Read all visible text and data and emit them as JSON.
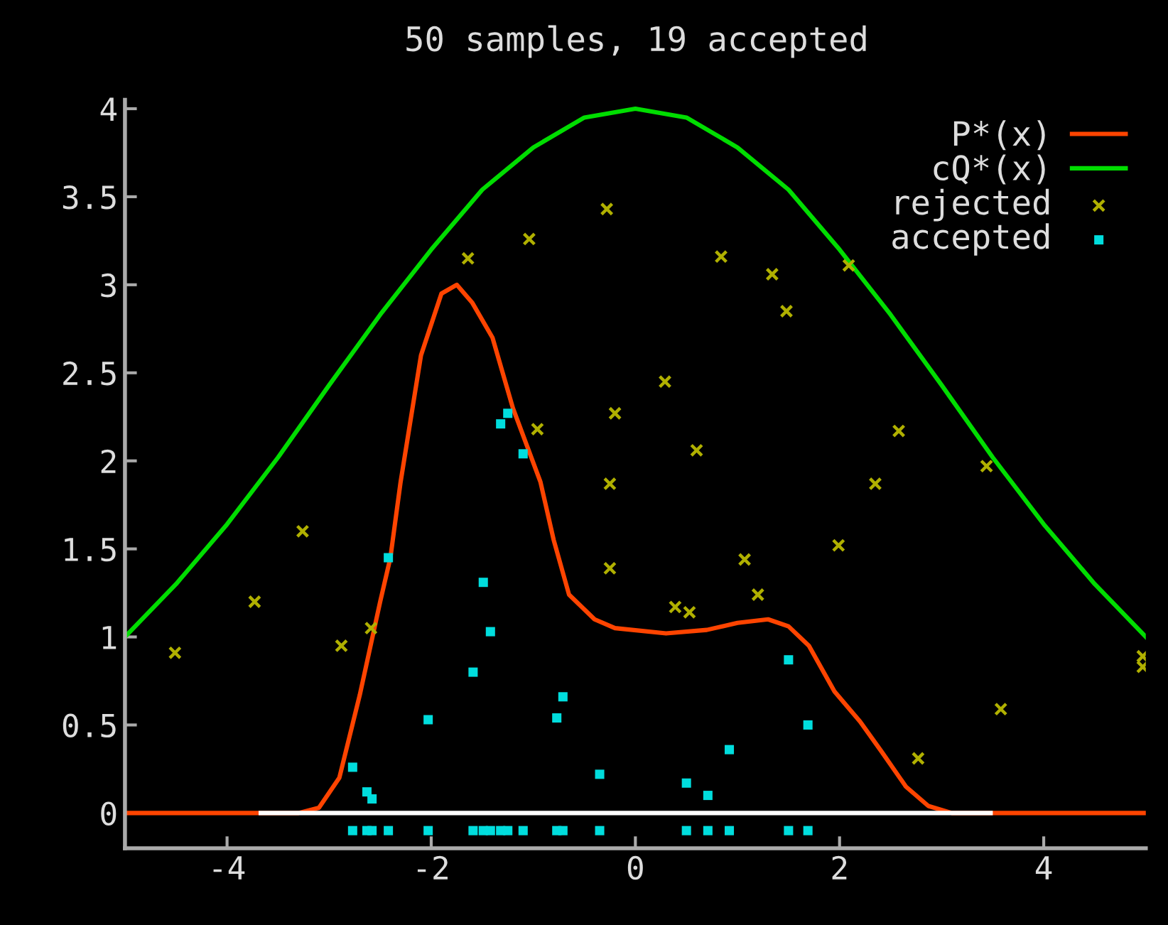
{
  "chart_data": {
    "type": "line",
    "title": "50 samples, 19 accepted",
    "xlim": [
      -5,
      5
    ],
    "xticks": [
      -4,
      -2,
      0,
      2,
      4
    ],
    "ylim": [
      -0.2,
      4.05
    ],
    "yticks": [
      0,
      0.5,
      1,
      1.5,
      2,
      2.5,
      3,
      3.5,
      4
    ],
    "grid": false,
    "legend": "top right",
    "series": [
      {
        "name": "P*(x)",
        "color": "#ff4400",
        "marker": "none",
        "x": [
          -5,
          -3.3,
          -3.1,
          -2.9,
          -2.7,
          -2.5,
          -2.4,
          -2.3,
          -2.1,
          -1.9,
          -1.75,
          -1.6,
          -1.4,
          -1.2,
          -0.93,
          -0.8,
          -0.65,
          -0.4,
          -0.2,
          0.3,
          0.7,
          1.0,
          1.3,
          1.5,
          1.7,
          1.95,
          2.2,
          2.41,
          2.65,
          2.87,
          3.1,
          5
        ],
        "values": [
          0,
          0,
          0.03,
          0.2,
          0.67,
          1.2,
          1.45,
          1.88,
          2.6,
          2.95,
          3.0,
          2.9,
          2.7,
          2.3,
          1.88,
          1.55,
          1.24,
          1.1,
          1.05,
          1.02,
          1.04,
          1.08,
          1.1,
          1.06,
          0.95,
          0.69,
          0.52,
          0.35,
          0.15,
          0.04,
          0,
          0
        ]
      },
      {
        "name": "cQ*(x)",
        "color": "#00dd00",
        "marker": "none",
        "x": [
          -5,
          -4.5,
          -4,
          -3.5,
          -3,
          -2.5,
          -2,
          -1.5,
          -1,
          -0.5,
          0,
          0.5,
          1,
          1.5,
          2,
          2.5,
          3,
          3.5,
          4,
          4.5,
          5
        ],
        "values": [
          1.0,
          1.3,
          1.64,
          2.02,
          2.43,
          2.83,
          3.2,
          3.54,
          3.78,
          3.95,
          4.0,
          3.95,
          3.78,
          3.54,
          3.2,
          2.83,
          2.43,
          2.02,
          1.64,
          1.3,
          1.0
        ]
      },
      {
        "name": "rejected",
        "type": "scatter",
        "color": "#b0b000",
        "marker": "cross",
        "x": [
          -4.51,
          -3.73,
          -3.26,
          -2.88,
          -2.59,
          -1.64,
          -1.04,
          -0.96,
          -0.28,
          -0.25,
          -0.25,
          -0.2,
          0.29,
          0.39,
          0.53,
          0.6,
          0.84,
          1.07,
          1.2,
          1.34,
          1.48,
          2.09,
          1.99,
          2.35,
          2.58,
          2.77,
          3.44,
          3.58,
          4.97,
          4.97
        ],
        "values": [
          0.91,
          1.2,
          1.6,
          0.95,
          1.05,
          3.15,
          3.26,
          2.18,
          3.43,
          1.39,
          1.87,
          2.27,
          2.45,
          1.17,
          1.14,
          2.06,
          3.16,
          1.44,
          1.24,
          3.06,
          2.85,
          3.11,
          1.52,
          1.87,
          2.17,
          0.31,
          1.97,
          0.59,
          0.89,
          0.83
        ]
      },
      {
        "name": "accepted",
        "type": "scatter",
        "color": "#00dddd",
        "marker": "square",
        "x": [
          -2.42,
          -2.77,
          -2.63,
          -2.58,
          -2.03,
          -1.49,
          -1.42,
          -1.59,
          -1.32,
          -1.25,
          -1.1,
          -0.77,
          -0.71,
          -0.35,
          0.5,
          0.71,
          0.92,
          1.5,
          1.69
        ],
        "values": [
          1.45,
          0.26,
          0.12,
          0.08,
          0.53,
          1.31,
          1.03,
          0.8,
          2.21,
          2.27,
          2.04,
          0.54,
          0.66,
          0.22,
          0.17,
          0.1,
          0.36,
          0.87,
          0.5
        ]
      },
      {
        "type": "scatter",
        "color": "#00dddd",
        "marker": "square",
        "x": [
          -2.42,
          -2.77,
          -2.63,
          -2.58,
          -2.03,
          -1.49,
          -1.42,
          -1.59,
          -1.32,
          -1.25,
          -1.1,
          -0.77,
          -0.71,
          -0.35,
          0.5,
          0.71,
          0.92,
          1.5,
          1.69
        ],
        "values": [
          -0.1,
          -0.1,
          -0.1,
          -0.1,
          -0.1,
          -0.1,
          -0.1,
          -0.1,
          -0.1,
          -0.1,
          -0.1,
          -0.1,
          -0.1,
          -0.1,
          -0.1,
          -0.1,
          -0.1,
          -0.1,
          -0.1
        ]
      },
      {
        "color": "#ffffff",
        "marker": "none",
        "x": [
          -3.67,
          3.48
        ],
        "values": [
          0,
          0
        ]
      }
    ]
  }
}
